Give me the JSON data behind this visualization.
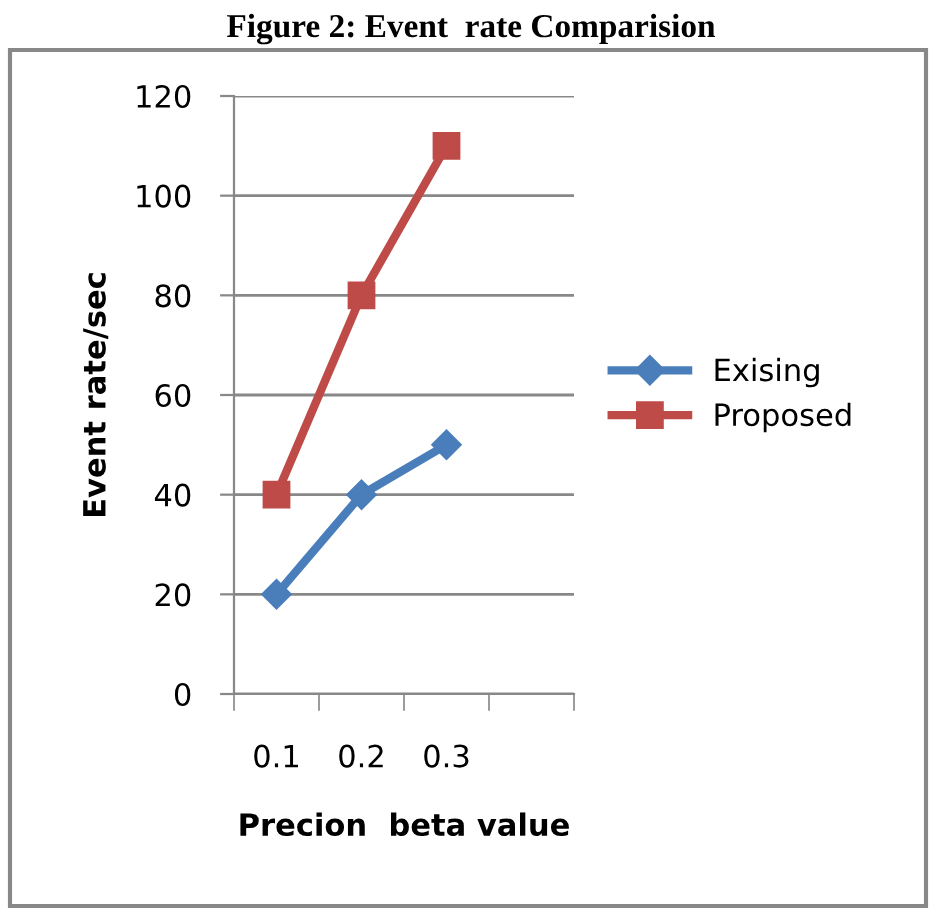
{
  "chart_data": {
    "type": "line",
    "title": "Figure 2: Event  rate Comparision",
    "xlabel": "Precion  beta value",
    "ylabel": "Event rate/sec",
    "categories": [
      "0.1",
      "0.2",
      "0.3",
      null
    ],
    "series": [
      {
        "name": "Exising",
        "color": "#4a7ebb",
        "marker": "diamond",
        "values": [
          20,
          40,
          50,
          null
        ]
      },
      {
        "name": "Proposed",
        "color": "#be4b48",
        "marker": "square",
        "values": [
          40,
          80,
          110,
          null
        ]
      }
    ],
    "ylim": [
      0,
      120
    ],
    "yticks": [
      0,
      20,
      40,
      60,
      80,
      100,
      120
    ],
    "grid": "y",
    "legend": "right",
    "line_style": "solid"
  }
}
